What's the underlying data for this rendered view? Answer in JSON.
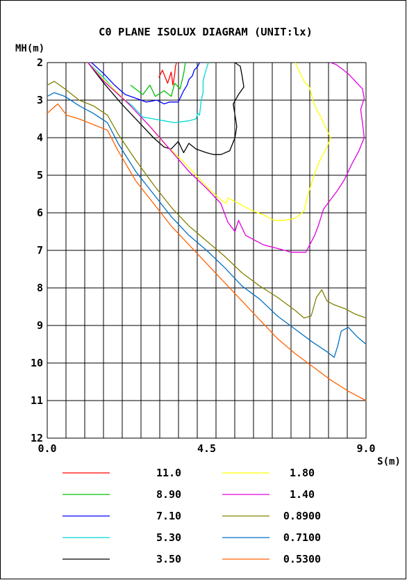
{
  "chart_data": {
    "type": "line",
    "title": "C0 PLANE ISOLUX DIAGRAM (UNIT:lx)",
    "ylabel": "MH(m)",
    "xlabel": "S(m)",
    "xlim": [
      0,
      9
    ],
    "ylim": [
      2,
      12
    ],
    "y_inverted": true,
    "grid": true,
    "x_ticks": [
      0.0,
      4.5,
      9.0
    ],
    "x_tick_labels": [
      "0.0",
      "4.5",
      "9.0"
    ],
    "y_ticks": [
      2,
      3,
      4,
      5,
      6,
      7,
      8,
      9,
      10,
      11,
      12
    ],
    "y_tick_labels": [
      "2",
      "3",
      "4",
      "5",
      "6",
      "7",
      "8",
      "9",
      "10",
      "11",
      "12"
    ],
    "legend_position": "bottom",
    "series": [
      {
        "name": "11.0",
        "color": "#ff0000",
        "x": [
          3.15,
          3.25,
          3.4,
          3.5,
          3.55,
          3.6,
          3.62,
          3.65
        ],
        "y": [
          2.4,
          2.2,
          2.55,
          2.25,
          2.6,
          2.3,
          2.1,
          2.0
        ]
      },
      {
        "name": "8.90",
        "color": "#00c000",
        "x": [
          2.35,
          2.7,
          2.9,
          3.05,
          3.3,
          3.5,
          3.6,
          3.75,
          3.85,
          3.9
        ],
        "y": [
          2.6,
          2.85,
          2.6,
          2.9,
          2.75,
          2.9,
          2.55,
          2.7,
          2.3,
          2.0
        ]
      },
      {
        "name": "7.10",
        "color": "#0000ff",
        "x": [
          1.25,
          1.6,
          1.9,
          2.2,
          2.5,
          2.8,
          3.1,
          3.3,
          3.45,
          3.7,
          3.85,
          3.95,
          4.0,
          4.1,
          4.15,
          4.25,
          4.3
        ],
        "y": [
          2.0,
          2.3,
          2.6,
          2.85,
          2.95,
          3.05,
          3.0,
          3.1,
          3.05,
          3.05,
          2.75,
          2.6,
          2.45,
          2.35,
          2.2,
          2.1,
          2.0
        ]
      },
      {
        "name": "5.30",
        "color": "#00d8d8",
        "x": [
          1.15,
          1.6,
          2.0,
          2.4,
          2.7,
          3.0,
          3.3,
          3.6,
          4.0,
          4.2,
          4.25,
          4.3,
          4.35,
          4.4,
          4.4,
          4.45,
          4.5,
          4.55
        ],
        "y": [
          2.0,
          2.4,
          2.85,
          3.15,
          3.45,
          3.5,
          3.55,
          3.6,
          3.55,
          3.5,
          3.35,
          3.4,
          3.0,
          2.8,
          2.5,
          2.3,
          2.15,
          2.0
        ]
      },
      {
        "name": "3.50",
        "color": "#000000",
        "x": [
          1.15,
          1.6,
          2.1,
          2.6,
          3.0,
          3.3,
          3.5,
          3.7,
          3.85,
          4.0,
          4.2,
          4.5,
          4.7,
          4.9,
          5.15,
          5.3,
          5.35,
          5.25,
          5.4,
          5.55,
          5.5,
          5.45,
          5.3
        ],
        "y": [
          2.0,
          2.55,
          3.1,
          3.6,
          4.0,
          4.25,
          4.3,
          4.1,
          4.4,
          4.15,
          4.3,
          4.4,
          4.45,
          4.45,
          4.35,
          4.0,
          3.7,
          3.1,
          2.85,
          2.65,
          2.35,
          2.1,
          2.0
        ]
      },
      {
        "name": "1.80",
        "color": "#ffff00",
        "x": [
          1.15,
          1.6,
          2.2,
          2.8,
          3.3,
          3.8,
          4.2,
          4.6,
          4.9,
          5.05,
          5.1,
          5.3,
          5.6,
          5.8,
          6.1,
          6.4,
          6.7,
          7.0,
          7.25,
          7.35,
          7.45,
          7.55,
          7.7,
          7.9,
          8.0,
          7.85,
          7.7,
          7.6,
          7.5,
          7.4,
          7.25,
          7.1,
          7.0
        ],
        "y": [
          2.0,
          2.45,
          3.0,
          3.6,
          4.15,
          4.6,
          5.0,
          5.4,
          5.65,
          5.75,
          5.6,
          5.7,
          5.85,
          5.95,
          6.05,
          6.2,
          6.2,
          6.15,
          5.95,
          5.55,
          5.25,
          4.95,
          4.6,
          4.25,
          4.0,
          3.7,
          3.4,
          3.25,
          3.0,
          2.65,
          2.5,
          2.2,
          2.0
        ]
      },
      {
        "name": "1.40",
        "color": "#e000e0",
        "x": [
          1.15,
          1.6,
          2.3,
          2.9,
          3.5,
          4.0,
          4.5,
          4.9,
          5.1,
          5.3,
          5.4,
          5.6,
          5.8,
          6.1,
          6.5,
          6.9,
          7.3,
          7.55,
          7.65,
          7.8,
          8.0,
          8.2,
          8.4,
          8.6,
          8.8,
          8.95,
          8.9,
          8.85,
          8.95,
          8.9,
          8.7,
          8.5,
          8.3,
          8.15,
          8.0
        ],
        "y": [
          2.0,
          2.5,
          3.1,
          3.7,
          4.35,
          4.9,
          5.35,
          5.75,
          6.25,
          6.5,
          6.2,
          6.6,
          6.7,
          6.85,
          6.95,
          7.05,
          7.05,
          6.6,
          6.35,
          5.9,
          5.65,
          5.4,
          5.1,
          4.7,
          4.35,
          4.0,
          3.6,
          3.25,
          2.95,
          2.7,
          2.5,
          2.3,
          2.15,
          2.05,
          2.0
        ]
      },
      {
        "name": "0.8900",
        "color": "#808000",
        "x": [
          0.0,
          0.2,
          0.5,
          0.9,
          1.3,
          1.7,
          2.0,
          2.5,
          3.0,
          3.5,
          4.0,
          4.5,
          5.0,
          5.5,
          6.0,
          6.5,
          7.0,
          7.25,
          7.45,
          7.6,
          7.75,
          7.9,
          8.1,
          8.4,
          8.7,
          9.0
        ],
        "y": [
          2.6,
          2.5,
          2.7,
          3.0,
          3.15,
          3.4,
          3.9,
          4.6,
          5.25,
          5.85,
          6.35,
          6.75,
          7.15,
          7.6,
          7.95,
          8.25,
          8.6,
          8.8,
          8.75,
          8.25,
          8.05,
          8.35,
          8.45,
          8.55,
          8.7,
          8.8
        ]
      },
      {
        "name": "0.7100",
        "color": "#0070c0",
        "x": [
          0.0,
          0.2,
          0.5,
          0.9,
          1.3,
          1.7,
          2.0,
          2.5,
          3.0,
          3.5,
          4.0,
          4.5,
          5.0,
          5.5,
          6.0,
          6.5,
          7.0,
          7.5,
          7.9,
          8.1,
          8.2,
          8.3,
          8.5,
          8.75,
          9.0
        ],
        "y": [
          2.9,
          2.8,
          2.9,
          3.15,
          3.35,
          3.6,
          4.15,
          4.9,
          5.5,
          6.1,
          6.6,
          7.0,
          7.45,
          7.95,
          8.3,
          8.75,
          9.1,
          9.45,
          9.7,
          9.85,
          9.55,
          9.15,
          9.05,
          9.3,
          9.5
        ]
      },
      {
        "name": "0.5300",
        "color": "#ff6000",
        "x": [
          0.0,
          0.3,
          0.55,
          0.9,
          1.3,
          1.7,
          2.0,
          2.5,
          3.0,
          3.5,
          4.0,
          4.5,
          5.0,
          5.5,
          6.0,
          6.5,
          7.0,
          7.5,
          8.0,
          8.5,
          9.0
        ],
        "y": [
          3.35,
          3.1,
          3.4,
          3.5,
          3.65,
          3.8,
          4.35,
          5.15,
          5.75,
          6.35,
          6.85,
          7.35,
          7.85,
          8.35,
          8.85,
          9.35,
          9.75,
          10.1,
          10.45,
          10.75,
          11.0
        ]
      }
    ]
  }
}
